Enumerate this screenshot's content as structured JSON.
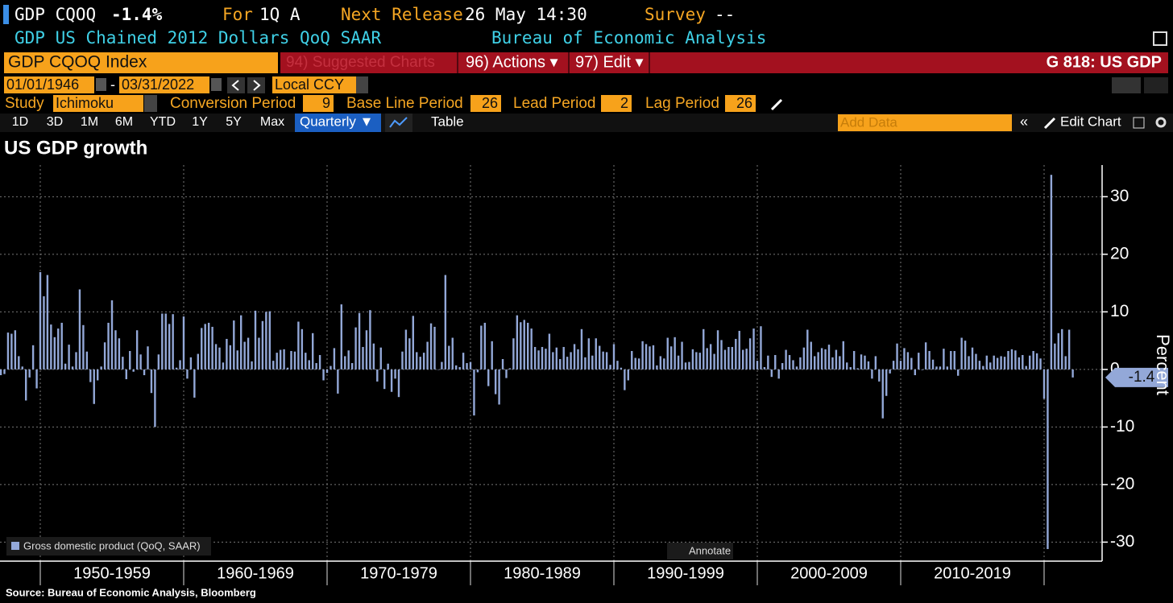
{
  "header": {
    "ticker": "GDP CQOQ",
    "change": "-1.4%",
    "for_label": "For",
    "for_value": "1Q A",
    "next_release_label": "Next Release",
    "next_release_value": "26 May 14:30",
    "survey_label": "Survey",
    "survey_value": "--",
    "description": "GDP US Chained 2012 Dollars QoQ SAAR",
    "agency": "Bureau of Economic Analysis"
  },
  "toolbar": {
    "security": "GDP CQOQ Index",
    "suggested": "94) Suggested Charts",
    "actions": "96) Actions ▾",
    "edit": "97) Edit ▾",
    "page_code": "G 818: US GDP",
    "start_date": "01/01/1946",
    "end_date": "03/31/2022",
    "currency": "Local CCY",
    "study_label": "Study",
    "study": "Ichimoku",
    "params": [
      {
        "label": "Conversion Period",
        "value": 9
      },
      {
        "label": "Base Line Period",
        "value": 26
      },
      {
        "label": "Lead Period",
        "value": 2
      },
      {
        "label": "Lag Period",
        "value": 26
      }
    ],
    "ranges": [
      "1D",
      "3D",
      "1M",
      "6M",
      "YTD",
      "1Y",
      "5Y",
      "Max"
    ],
    "frequency": "Quarterly ▼",
    "table": "Table",
    "add_data": "Add Data",
    "edit_chart": "Edit Chart"
  },
  "chart_data": {
    "type": "bar",
    "title": "US GDP growth",
    "y_label": "Percent",
    "annotate": "Annotate",
    "source": "Source: Bureau of Economic Analysis, Bloomberg",
    "decades": [
      "1950-1959",
      "1960-1969",
      "1970-1979",
      "1980-1989",
      "1990-1999",
      "2000-2009",
      "2010-2019"
    ],
    "ylim": [
      -33.3,
      35.5
    ],
    "yticks": [
      -30,
      -20,
      -10,
      0,
      10,
      20,
      30
    ],
    "grid": true,
    "series": [
      {
        "name": "Gross domestic product (QoQ, SAAR)",
        "color": "#93a8d8",
        "values": [
          -1.0,
          -0.8,
          6.4,
          6.2,
          6.8,
          2.3,
          0.5,
          -5.4,
          -1.4,
          4.2,
          -3.3,
          16.9,
          12.7,
          16.4,
          7.8,
          5.6,
          7.1,
          8.1,
          1.0,
          4.3,
          0.5,
          3.0,
          13.9,
          7.7,
          3.1,
          -2.2,
          -6.0,
          -1.9,
          0.5,
          4.7,
          8.1,
          12.0,
          6.8,
          5.4,
          2.2,
          -1.7,
          3.2,
          -0.4,
          6.8,
          2.6,
          -1.0,
          4.0,
          -4.1,
          -10.0,
          2.6,
          9.7,
          9.7,
          7.9,
          9.6,
          0.3,
          1.6,
          9.2,
          -1.6,
          2.1,
          -4.9,
          2.7,
          7.2,
          7.9,
          8.1,
          7.4,
          4.4,
          3.8,
          1.2,
          5.3,
          4.2,
          8.5,
          3.3,
          9.4,
          4.8,
          5.5,
          1.4,
          10.2,
          5.5,
          8.4,
          10.0,
          10.1,
          1.5,
          2.9,
          3.4,
          3.5,
          0.3,
          3.2,
          3.1,
          8.3,
          7.0,
          2.9,
          1.6,
          6.3,
          1.1,
          2.5,
          -1.9,
          -0.6,
          0.6,
          3.7,
          -4.2,
          11.3,
          2.3,
          3.3,
          1.1,
          7.3,
          9.8,
          3.9,
          6.8,
          10.3,
          4.5,
          -2.1,
          3.8,
          -3.4,
          1.0,
          -3.9,
          -1.6,
          -4.8,
          3.1,
          6.9,
          5.4,
          9.3,
          3.0,
          2.2,
          2.9,
          4.8,
          8.0,
          7.4,
          0.0,
          1.3,
          16.4,
          4.1,
          5.5,
          0.7,
          0.4,
          2.9,
          1.1,
          1.3,
          -8.0,
          -0.5,
          7.6,
          8.1,
          -2.9,
          4.9,
          -4.3,
          -6.1,
          1.8,
          -1.5,
          0.2,
          5.4,
          9.4,
          8.2,
          8.6,
          8.1,
          7.1,
          3.9,
          3.3,
          3.9,
          3.6,
          6.2,
          3.0,
          3.8,
          1.8,
          3.9,
          2.2,
          3.0,
          4.4,
          3.5,
          7.0,
          2.1,
          5.4,
          2.4,
          5.4,
          4.1,
          3.1,
          3.0,
          0.8,
          4.4,
          1.5,
          0.3,
          -3.6,
          -1.9,
          3.2,
          2.0,
          1.9,
          4.9,
          4.4,
          4.0,
          4.2,
          0.7,
          2.3,
          1.9,
          5.5,
          4.0,
          5.6,
          2.4,
          4.8,
          1.2,
          1.3,
          3.5,
          3.0,
          2.9,
          7.0,
          3.7,
          4.4,
          2.7,
          6.8,
          5.1,
          3.4,
          3.9,
          3.9,
          5.3,
          6.7,
          3.4,
          3.6,
          5.4,
          7.1,
          1.5,
          7.5,
          0.4,
          2.4,
          -1.3,
          2.5,
          -1.6,
          1.1,
          3.4,
          2.5,
          1.6,
          0.5,
          2.1,
          3.8,
          6.9,
          4.8,
          2.3,
          3.0,
          3.7,
          3.5,
          4.3,
          2.1,
          3.4,
          2.3,
          4.9,
          1.2,
          0.4,
          3.2,
          0.2,
          2.6,
          2.4,
          1.4,
          -1.6,
          2.3,
          -2.1,
          -8.5,
          -4.6,
          -0.7,
          1.5,
          4.5,
          1.5,
          3.7,
          3.0,
          2.0,
          -1.0,
          2.9,
          -0.1,
          4.7,
          3.2,
          1.7,
          0.5,
          0.5,
          3.6,
          0.5,
          3.2,
          3.2,
          -1.1,
          5.5,
          5.0,
          2.3,
          3.8,
          2.7,
          1.5,
          0.6,
          2.4,
          1.2,
          2.4,
          2.0,
          2.3,
          2.2,
          3.2,
          3.5,
          3.3,
          2.1,
          2.5,
          0.6,
          2.4,
          3.2,
          2.8,
          1.9,
          -5.1,
          -31.2,
          33.8,
          4.5,
          6.3,
          7.0,
          2.3,
          6.9,
          -1.4
        ]
      }
    ]
  }
}
